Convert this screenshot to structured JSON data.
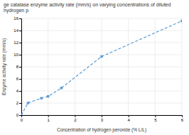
{
  "chart_data": {
    "type": "line",
    "title": "ge catalase enzyme activity rate (mm/s) on varying concentrations of diluted hydrogen p",
    "xlabel": "Concentration of hydrogen peroxide (% L/L)",
    "ylabel": "Enzyme activity rate (mm/s)",
    "x": [
      0.0,
      0.25,
      0.75,
      1.0,
      1.5,
      3.0,
      6.0
    ],
    "values": [
      0.0,
      2.0,
      2.8,
      3.1,
      4.5,
      9.7,
      15.6
    ],
    "xlim": [
      0,
      6
    ],
    "ylim": [
      0,
      16
    ],
    "xticks": [
      0,
      1,
      2,
      3,
      4,
      5,
      6
    ],
    "yticks": [
      0,
      2,
      4,
      6,
      8,
      10,
      12,
      14,
      16
    ],
    "color": "#5b9bd5",
    "marker": "square",
    "line_style": "dashed",
    "grid": true
  }
}
